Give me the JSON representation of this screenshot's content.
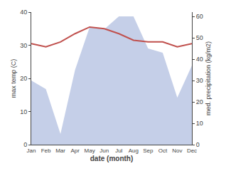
{
  "chart_data": {
    "type": "line",
    "categories": [
      "Jan",
      "Feb",
      "Mar",
      "Apr",
      "May",
      "Jun",
      "Jul",
      "Aug",
      "Sep",
      "Oct",
      "Nov",
      "Dec"
    ],
    "xlabel": "date (month)",
    "ylabel": "max temp (C)",
    "y2label": "med. precipitation (kg/m2)",
    "series": [
      {
        "type": "area",
        "axis": "y2",
        "color": "#c5cfe8",
        "values": [
          30,
          26,
          5,
          35,
          55,
          54,
          60,
          60,
          45,
          43,
          22,
          37
        ]
      },
      {
        "type": "line",
        "color": "#c0504d",
        "values": [
          30.5,
          29.5,
          31.0,
          33.5,
          35.5,
          35.0,
          33.5,
          31.5,
          31.0,
          31.0,
          29.5,
          30.5
        ]
      }
    ],
    "ylim": [
      0,
      40
    ],
    "yticks": [
      0,
      10,
      20,
      30,
      40
    ],
    "y2lim": [
      0,
      62
    ],
    "y2ticks": [
      0,
      10,
      20,
      30,
      40,
      50,
      60
    ],
    "grid": false
  }
}
